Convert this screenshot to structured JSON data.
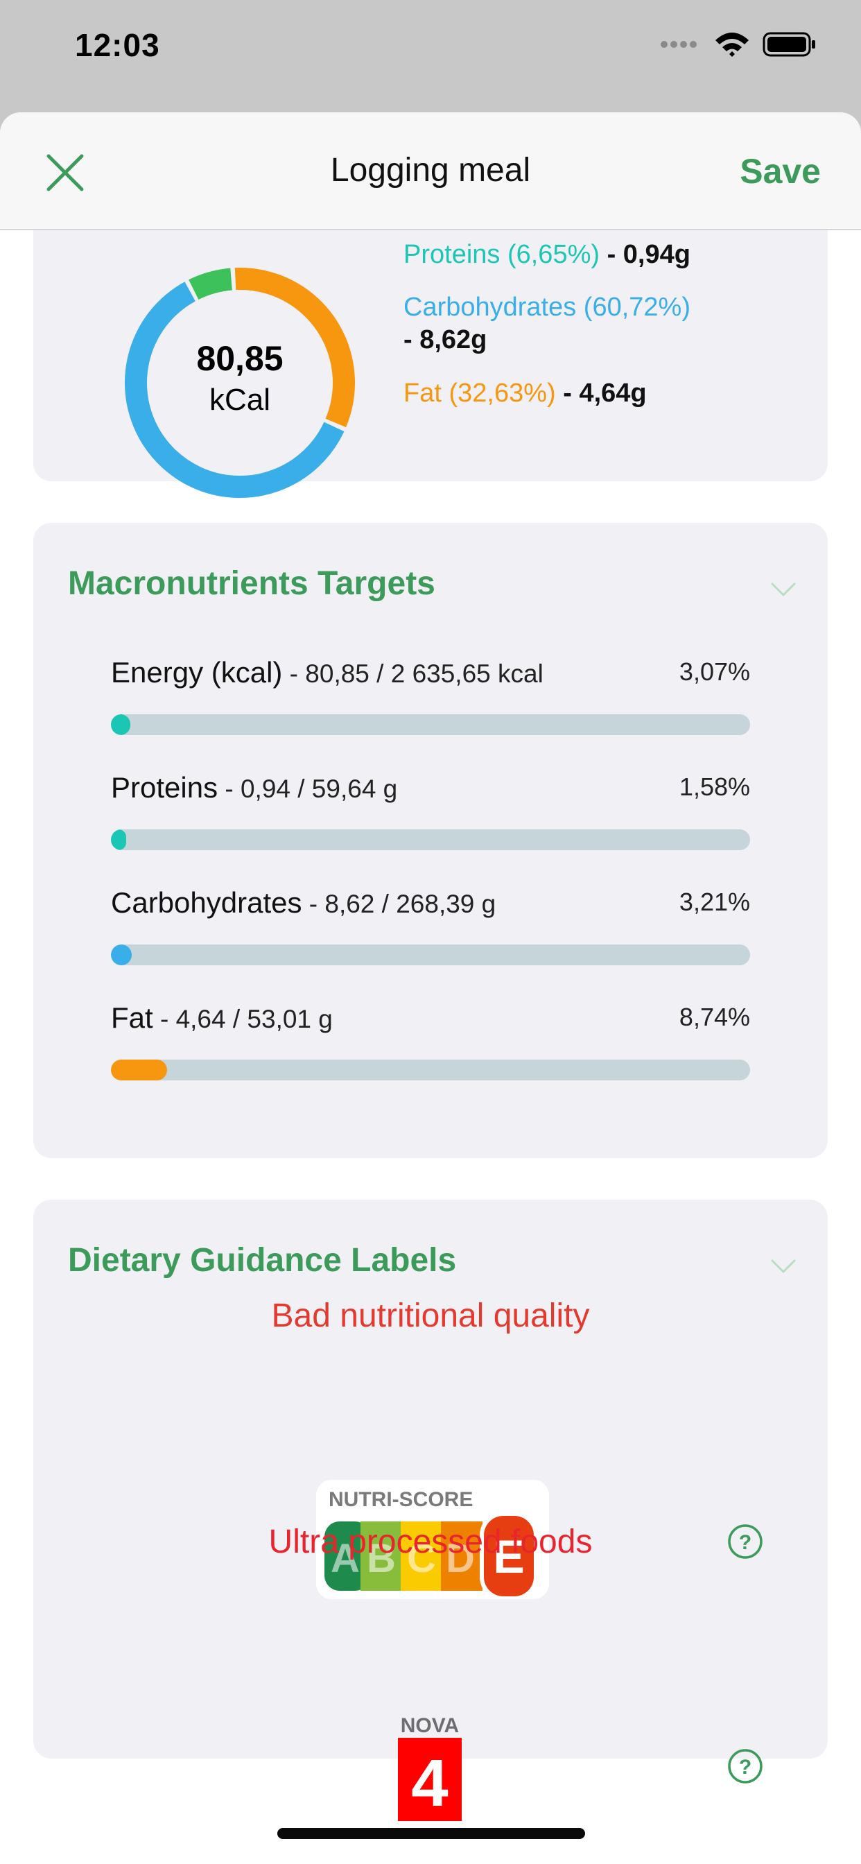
{
  "status_bar": {
    "time": "12:03"
  },
  "navbar": {
    "title": "Logging meal",
    "save_label": "Save",
    "close_icon": "close-icon"
  },
  "summary": {
    "energy_value": "80,85",
    "energy_unit": "kCal",
    "proteins_label": "Proteins (6,65%)",
    "proteins_amount": "- 0,94g",
    "carbs_label": "Carbohydrates (60,72%)",
    "carbs_amount": "- 8,62g",
    "fat_label": "Fat (32,63%)",
    "fat_amount": "- 4,64g",
    "donut": {
      "proteins_pct": 6.65,
      "carbs_pct": 60.72,
      "fat_pct": 32.63
    }
  },
  "macros": {
    "title": "Macronutrients Targets",
    "rows": [
      {
        "name": "Energy (kcal)",
        "detail": " - 80,85 / 2 635,65 kcal",
        "percent": "3,07%",
        "fraction": 0.0307,
        "color": "#1cc6b4"
      },
      {
        "name": "Proteins",
        "detail": " - 0,94 / 59,64 g",
        "percent": "1,58%",
        "fraction": 0.0158,
        "color": "#1cc6b4"
      },
      {
        "name": "Carbohydrates",
        "detail": " - 8,62 / 268,39 g",
        "percent": "3,21%",
        "fraction": 0.0321,
        "color": "#3aaee8"
      },
      {
        "name": "Fat",
        "detail": " - 4,64 / 53,01 g",
        "percent": "8,74%",
        "fraction": 0.0874,
        "color": "#f7960f"
      }
    ]
  },
  "dietary": {
    "title": "Dietary Guidance Labels",
    "nutri_quality": "Bad nutritional quality",
    "nutri_score_heading": "NUTRI-SCORE",
    "nutri_letters": [
      "A",
      "B",
      "C",
      "D",
      "E"
    ],
    "nutri_score": "E",
    "nova_quality": "Ultra processed foods",
    "nova_heading": "NOVA",
    "nova_group": "4"
  },
  "colors": {
    "accent_green": "#3c9a5a",
    "proteins": "#1cc6b4",
    "carbs": "#3aaee8",
    "fat": "#f7960f",
    "donut_green": "#3dc25b",
    "warning_red": "#e53935"
  }
}
